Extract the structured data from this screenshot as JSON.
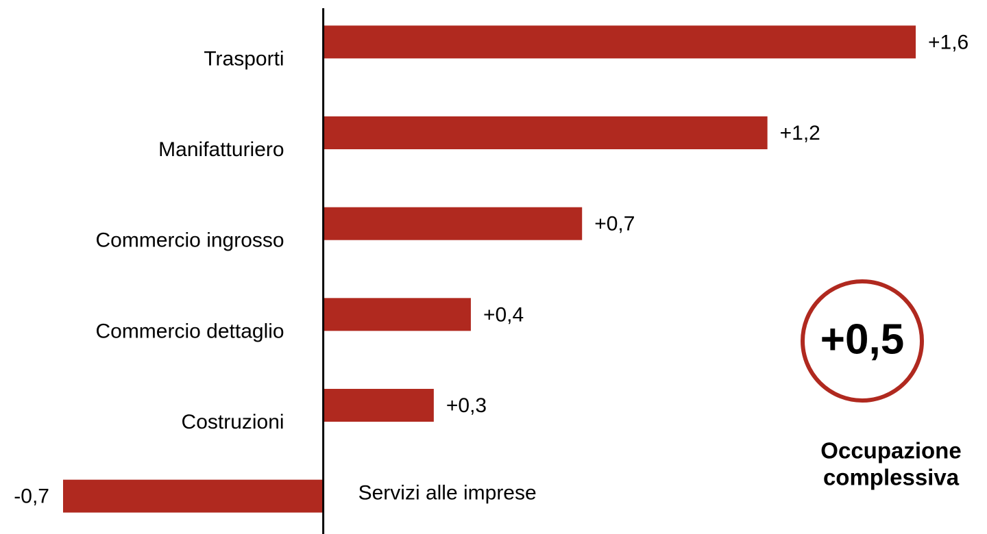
{
  "chart_data": {
    "type": "barh",
    "categories": [
      "Trasporti",
      "Manifatturiero",
      "Commercio ingrosso",
      "Commercio dettaglio",
      "Costruzioni",
      "Servizi alle imprese"
    ],
    "values": [
      1.6,
      1.2,
      0.7,
      0.4,
      0.3,
      -0.7
    ],
    "value_labels": [
      "+1,6",
      "+1,2",
      "+0,7",
      "+0,4",
      "+0,3",
      "-0,7"
    ],
    "color": "#b0291f",
    "xlim": [
      -0.7,
      1.6
    ],
    "annotation": {
      "value": 0.5,
      "label": "+0,5",
      "caption": [
        "Occupazione",
        "complessiva"
      ]
    }
  }
}
